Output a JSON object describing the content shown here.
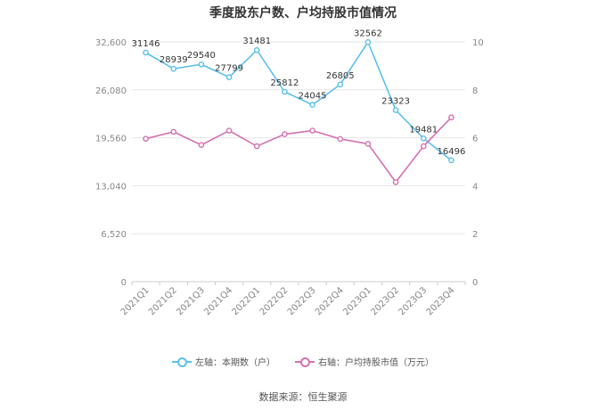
{
  "chart_data": {
    "type": "line",
    "title": "季度股东户数、户均持股市值情况",
    "categories": [
      "2021Q1",
      "2021Q2",
      "2021Q3",
      "2021Q4",
      "2022Q1",
      "2022Q2",
      "2022Q3",
      "2022Q4",
      "2023Q1",
      "2023Q2",
      "2023Q3",
      "2023Q4"
    ],
    "left_axis": {
      "ticks": [
        "0",
        "6,520",
        "13,040",
        "19,560",
        "26,080",
        "32,600"
      ],
      "min": 0,
      "max": 32600
    },
    "right_axis": {
      "ticks": [
        "0",
        "2",
        "4",
        "6",
        "8",
        "10"
      ],
      "min": 0,
      "max": 10
    },
    "series": [
      {
        "name": "左轴：本期数（户）",
        "axis": "left",
        "color": "#5bc0eb",
        "values": [
          31146,
          28939,
          29540,
          27799,
          31481,
          25812,
          24045,
          26805,
          32562,
          23323,
          19481,
          16496
        ],
        "labels": [
          "31146",
          "28939",
          "29540",
          "27799",
          "31481",
          "25812",
          "24045",
          "26805",
          "32562",
          "23323",
          "19481",
          "16496"
        ]
      },
      {
        "name": "右轴：户均持股市值（万元）",
        "axis": "right",
        "color": "#d471b0",
        "values": [
          5.96,
          6.25,
          5.7,
          6.3,
          5.65,
          6.15,
          6.3,
          5.95,
          5.75,
          4.15,
          5.65,
          6.85
        ]
      }
    ],
    "grid": true,
    "legend_position": "bottom-center"
  },
  "source": "数据来源：恒生聚源"
}
